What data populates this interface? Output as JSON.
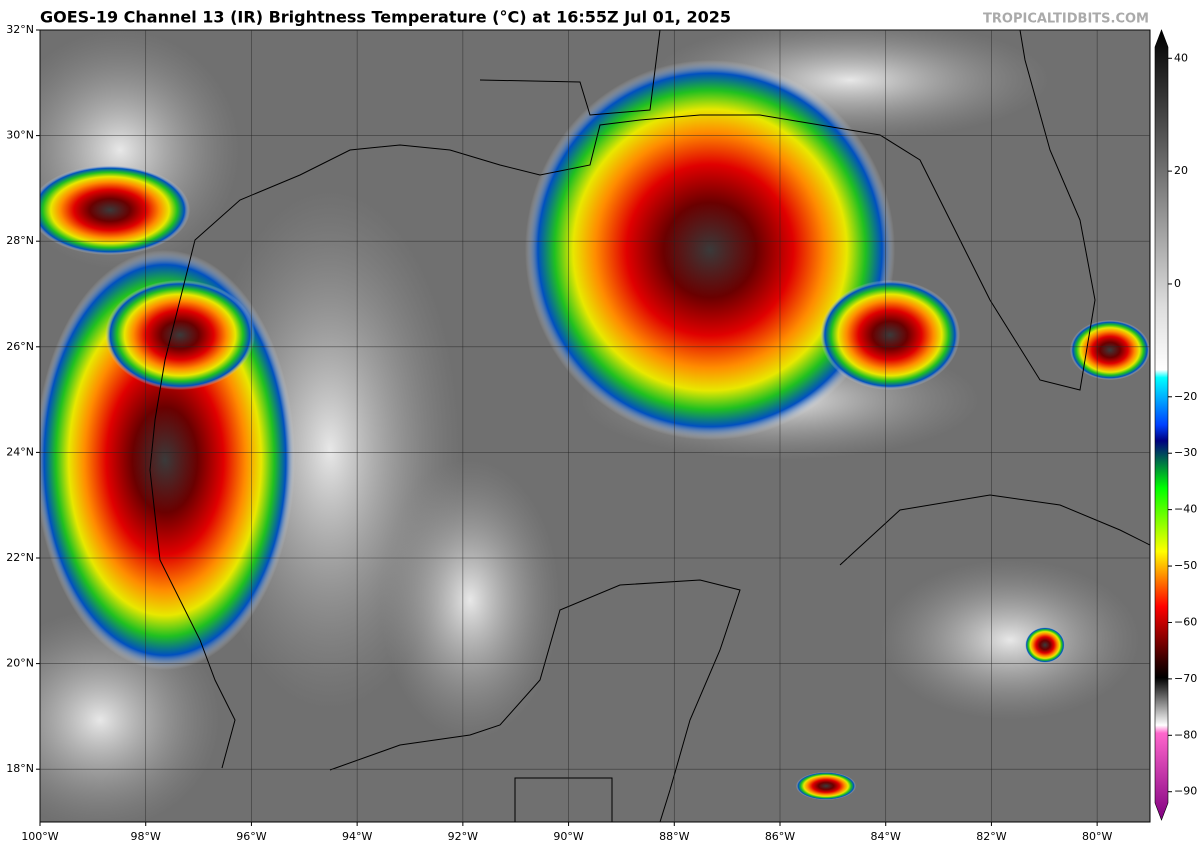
{
  "title": "GOES-19 Channel 13 (IR) Brightness Temperature (°C) at 16:55Z Jul 01, 2025",
  "watermark": "TROPICALTIDBITS.COM",
  "map": {
    "xlim": [
      -100,
      -79
    ],
    "ylim": [
      17,
      32
    ],
    "xticks": [
      {
        "value": -100,
        "label": "100°W"
      },
      {
        "value": -98,
        "label": "98°W"
      },
      {
        "value": -96,
        "label": "96°W"
      },
      {
        "value": -94,
        "label": "94°W"
      },
      {
        "value": -92,
        "label": "92°W"
      },
      {
        "value": -90,
        "label": "90°W"
      },
      {
        "value": -88,
        "label": "88°W"
      },
      {
        "value": -86,
        "label": "86°W"
      },
      {
        "value": -84,
        "label": "84°W"
      },
      {
        "value": -82,
        "label": "82°W"
      },
      {
        "value": -80,
        "label": "80°W"
      }
    ],
    "yticks": [
      {
        "value": 32,
        "label": "32°N"
      },
      {
        "value": 30,
        "label": "30°N"
      },
      {
        "value": 28,
        "label": "28°N"
      },
      {
        "value": 26,
        "label": "26°N"
      },
      {
        "value": 24,
        "label": "24°N"
      },
      {
        "value": 22,
        "label": "22°N"
      },
      {
        "value": 20,
        "label": "20°N"
      },
      {
        "value": 18,
        "label": "18°N"
      }
    ]
  },
  "colorbar": {
    "lim": [
      -92,
      42
    ],
    "ticks": [
      {
        "value": 40,
        "label": "40"
      },
      {
        "value": 20,
        "label": "20"
      },
      {
        "value": 0,
        "label": "0"
      },
      {
        "value": -20,
        "label": "−20"
      },
      {
        "value": -30,
        "label": "−30"
      },
      {
        "value": -40,
        "label": "−40"
      },
      {
        "value": -50,
        "label": "−50"
      },
      {
        "value": -60,
        "label": "−60"
      },
      {
        "value": -70,
        "label": "−70"
      },
      {
        "value": -80,
        "label": "−80"
      },
      {
        "value": -90,
        "label": "−90"
      }
    ]
  }
}
